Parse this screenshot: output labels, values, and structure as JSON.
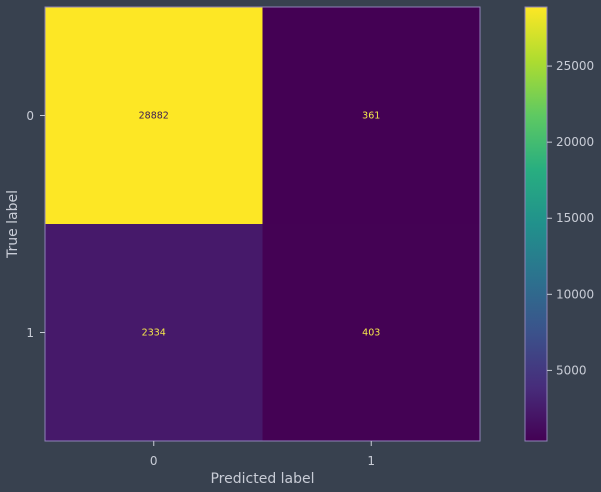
{
  "chart_data": {
    "type": "heatmap",
    "title": "",
    "xlabel": "Predicted label",
    "ylabel": "True label",
    "x_tick_labels": [
      "0",
      "1"
    ],
    "y_tick_labels": [
      "0",
      "1"
    ],
    "cells": [
      [
        {
          "value": 28882,
          "text": "28882"
        },
        {
          "value": 361,
          "text": "361"
        }
      ],
      [
        {
          "value": 2334,
          "text": "2334"
        },
        {
          "value": 403,
          "text": "403"
        }
      ]
    ],
    "colormap": "viridis",
    "colorbar": {
      "range": [
        361,
        28882
      ],
      "ticks": [
        {
          "value": 5000,
          "text": "5000"
        },
        {
          "value": 10000,
          "text": "10000"
        },
        {
          "value": 15000,
          "text": "15000"
        },
        {
          "value": 20000,
          "text": "20000"
        },
        {
          "value": 25000,
          "text": "25000"
        }
      ]
    },
    "grid": false,
    "colors": {
      "background": "#38414f",
      "text": "#c8ccd6",
      "frame": "#8f84b8",
      "label_on_dark": "#f5e84b",
      "label_on_light": "#3b1a54"
    }
  }
}
